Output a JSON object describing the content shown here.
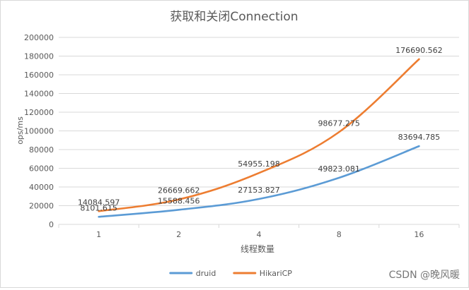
{
  "chart_data": {
    "type": "line",
    "title": "获取和关闭Connection",
    "xlabel": "线程数量",
    "ylabel": "ops/ms",
    "categories": [
      "1",
      "2",
      "4",
      "8",
      "16"
    ],
    "ylim": [
      0,
      200000
    ],
    "yticks": [
      "0",
      "20000",
      "40000",
      "60000",
      "80000",
      "100000",
      "120000",
      "140000",
      "160000",
      "180000",
      "200000"
    ],
    "grid": true,
    "legend_position": "bottom",
    "series": [
      {
        "name": "druid",
        "color": "#5b9bd5",
        "values": [
          8101.615,
          15588.456,
          27153.827,
          49823.081,
          83694.785
        ],
        "labels": [
          "8101.615",
          "15588.456",
          "27153.827",
          "49823.081",
          "83694.785"
        ]
      },
      {
        "name": "HikariCP",
        "color": "#ed7d31",
        "values": [
          14084.597,
          26669.662,
          54955.198,
          98677.275,
          176690.562
        ],
        "labels": [
          "14084.597",
          "26669.662",
          "54955.198",
          "98677.275",
          "176690.562"
        ]
      }
    ]
  },
  "watermark": "CSDN @晚风暖"
}
